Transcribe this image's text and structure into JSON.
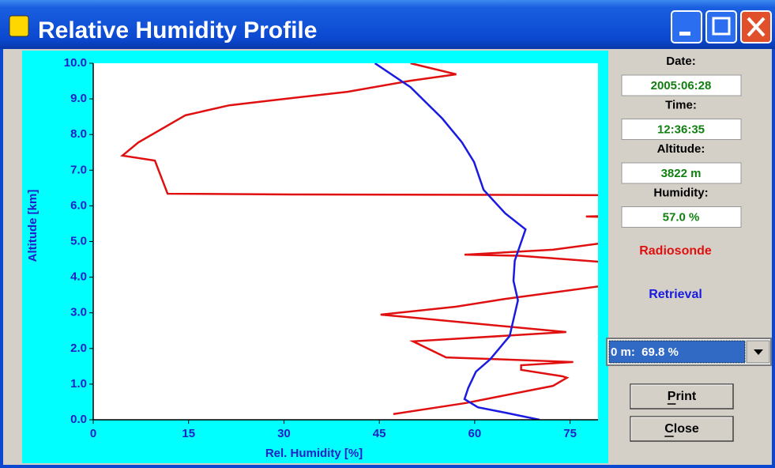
{
  "window": {
    "title": "Relative Humidity Profile"
  },
  "chart_data": {
    "type": "line",
    "xlabel": "Rel. Humidity [%]",
    "ylabel": "Altitude [km]",
    "xlim": [
      0,
      79.4
    ],
    "ylim": [
      0,
      10
    ],
    "xticks": [
      0,
      15,
      30,
      45,
      60,
      75
    ],
    "yticks": [
      {
        "value": 0,
        "label": "0.0"
      },
      {
        "value": 1,
        "label": "1.0"
      },
      {
        "value": 2,
        "label": "2.0"
      },
      {
        "value": 3,
        "label": "3.0"
      },
      {
        "value": 4,
        "label": "4.0"
      },
      {
        "value": 5,
        "label": "5.0"
      },
      {
        "value": 6,
        "label": "6.0"
      },
      {
        "value": 7,
        "label": "7.0"
      },
      {
        "value": 8,
        "label": "8.0"
      },
      {
        "value": 9,
        "label": "9.0"
      },
      {
        "value": 10,
        "label": "10.0"
      }
    ],
    "series": [
      {
        "name": "Radiosonde",
        "color": "#e01010",
        "x": [
          47.2,
          58.6,
          72.3,
          74.5,
          73.8,
          67.3,
          67.3,
          75.5,
          64.8,
          55.5,
          50.3,
          74.4,
          45.2,
          57.0,
          64.8,
          82.0,
          82.0,
          67.0,
          58.4,
          72.3,
          82.0,
          82.0,
          77.5,
          82.0,
          82.0,
          31.3,
          11.7,
          9.7,
          4.6,
          7.1,
          14.5,
          21.4,
          30.1,
          40.0,
          49.9,
          57.1,
          49.9
        ],
        "values": [
          0.16,
          0.47,
          0.95,
          1.18,
          1.22,
          1.4,
          1.53,
          1.62,
          1.69,
          1.75,
          2.2,
          2.46,
          2.95,
          3.17,
          3.39,
          3.8,
          4.4,
          4.6,
          4.63,
          4.77,
          5.0,
          5.68,
          5.7,
          5.72,
          6.3,
          6.32,
          6.34,
          7.27,
          7.41,
          7.78,
          8.54,
          8.82,
          9.0,
          9.2,
          9.51,
          9.69,
          10.0
        ]
      },
      {
        "name": "Retrieval",
        "color": "#1a1ae0",
        "x": [
          70.2,
          64.8,
          60.5,
          58.4,
          59.0,
          60.2,
          62.4,
          65.5,
          66.8,
          66.1,
          66.3,
          68.0,
          64.8,
          61.4,
          59.9,
          58.0,
          54.9,
          49.9,
          44.3
        ],
        "values": [
          0,
          0.2,
          0.35,
          0.58,
          0.9,
          1.35,
          1.69,
          2.35,
          3.35,
          3.9,
          4.46,
          5.34,
          5.79,
          6.45,
          7.23,
          7.78,
          8.45,
          9.33,
          10.0
        ]
      }
    ]
  },
  "panel": {
    "fields": [
      {
        "label": "Date:",
        "value": "2005:06:28"
      },
      {
        "label": "Time:",
        "value": "12:36:35"
      },
      {
        "label": "Altitude:",
        "value": "3822 m"
      },
      {
        "label": "Humidity:",
        "value": "57.0 %"
      }
    ],
    "dropdown": "0 m:  69.8 %",
    "buttons": [
      "Print",
      "Close"
    ]
  }
}
